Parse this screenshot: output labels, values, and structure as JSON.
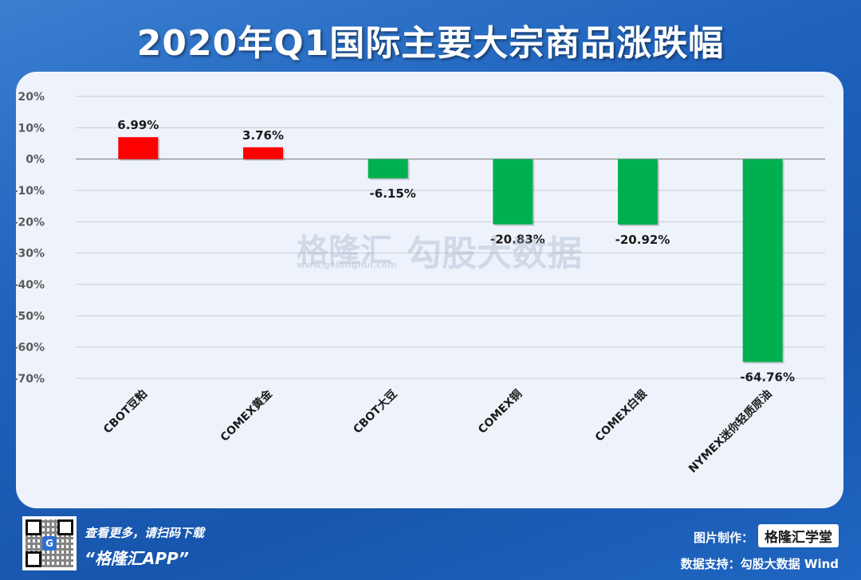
{
  "header": {
    "title": "2020年Q1国际主要大宗商品涨跌幅"
  },
  "watermark": {
    "brand": "格隆汇",
    "url": "www.gelonghui.com",
    "source": "勾股大数据"
  },
  "footer": {
    "qr_text1": "查看更多，请扫码下载",
    "qr_text2": "“格隆汇APP”",
    "credit_label": "图片制作：",
    "credit_logo": "格隆汇学堂",
    "data_support": "数据支持：勾股大数据 Wind"
  },
  "colors": {
    "positive": "#ff0000",
    "negative": "#00b050",
    "grid": "#c8ccd2",
    "axis": "#5a5a5a"
  },
  "chart_data": {
    "type": "bar",
    "title": "2020年Q1国际主要大宗商品涨跌幅",
    "categories": [
      "CBOT豆粕",
      "COMEX黄金",
      "CBOT大豆",
      "COMEX铜",
      "COMEX白银",
      "NYMEX迷你轻质原油"
    ],
    "values": [
      6.99,
      3.76,
      -6.15,
      -20.83,
      -20.92,
      -64.76
    ],
    "data_labels": [
      "6.99%",
      "3.76%",
      "-6.15%",
      "-20.83%",
      "-20.92%",
      "-64.76%"
    ],
    "ylim": [
      -70,
      20
    ],
    "yticks": [
      20,
      10,
      0,
      -10,
      -20,
      -30,
      -40,
      -50,
      -60,
      -70
    ],
    "ytick_labels": [
      "20%",
      "10%",
      "0%",
      "-10%",
      "-20%",
      "-30%",
      "-40%",
      "-50%",
      "-60%",
      "-70%"
    ],
    "grid": true,
    "legend": "none"
  }
}
